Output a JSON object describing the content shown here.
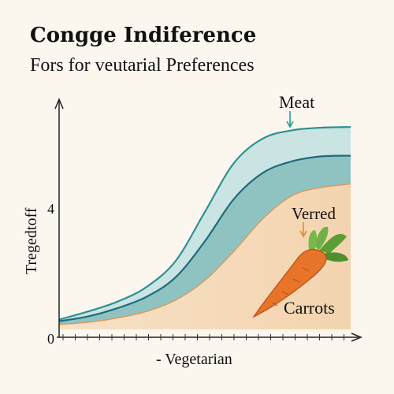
{
  "chart_data": {
    "type": "area",
    "title": "Congge Indiference",
    "subtitle": "Fors for veutarial Preferences",
    "xlabel": "- Vegetarian",
    "ylabel": "Tregedtoff",
    "yticks": [
      {
        "value": 0,
        "label": "0"
      },
      {
        "value": 4,
        "label": "4"
      }
    ],
    "xlim": [
      0,
      10
    ],
    "ylim": [
      0,
      7
    ],
    "grid": false,
    "x": [
      0,
      1,
      2,
      3,
      4,
      5,
      6,
      7,
      8,
      9,
      10
    ],
    "series": [
      {
        "name": "Meat",
        "values": [
          0.3,
          0.55,
          0.85,
          1.3,
          2.1,
          3.6,
          5.1,
          5.85,
          6.1,
          6.18,
          6.2
        ],
        "fill": "#c9e4e2",
        "stroke": "#2f8f92"
      },
      {
        "name": "",
        "values": [
          0.25,
          0.4,
          0.65,
          1.0,
          1.6,
          2.7,
          4.0,
          4.8,
          5.15,
          5.3,
          5.32
        ],
        "fill": "#8fc3c2",
        "stroke": "#1e6c7c"
      },
      {
        "name": "Verred",
        "values": [
          0.15,
          0.22,
          0.35,
          0.55,
          0.9,
          1.5,
          2.4,
          3.4,
          4.1,
          4.35,
          4.45
        ],
        "fill": "#f3cfa8",
        "stroke": "#d99a5b"
      }
    ],
    "annotations": [
      {
        "text": "Meat",
        "arrow_color": "#2a9d8f"
      },
      {
        "text": "Verred",
        "arrow_color": "#e08a2c"
      },
      {
        "text": "Carrots",
        "illustration": "carrot-icon"
      }
    ]
  }
}
